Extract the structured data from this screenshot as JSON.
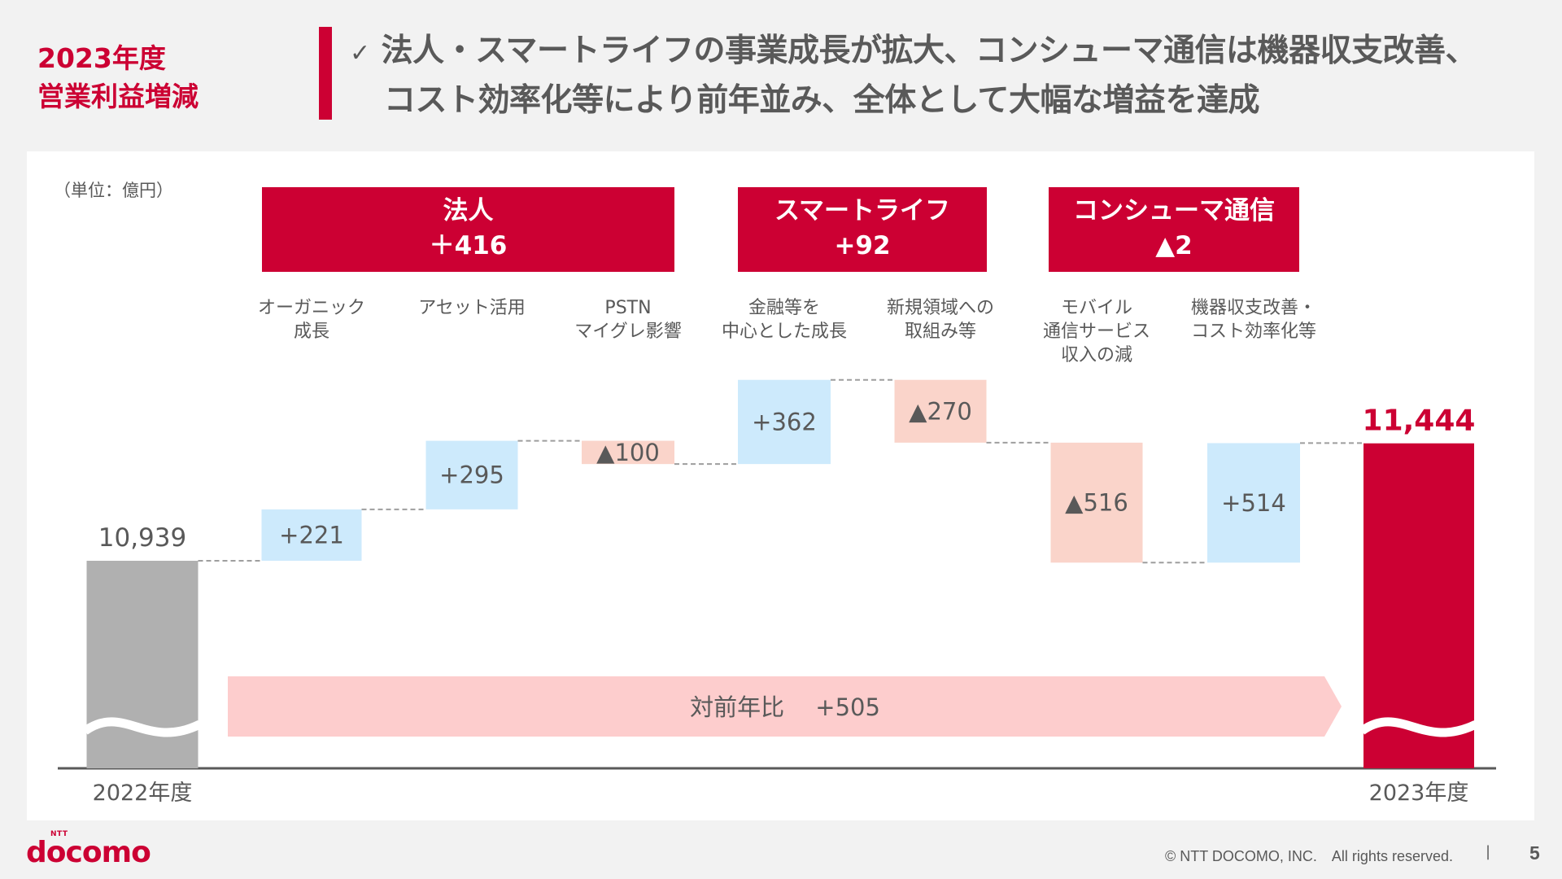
{
  "slide": {
    "heading_line1": "2023年度",
    "heading_line2": "営業利益増減",
    "headline_check": "✓",
    "headline_line1": "法人・スマートライフの事業成長が拡大、コンシューマ通信は機器収支改善、",
    "headline_line2": "コスト効率化等により前年並み、全体として大幅な増益を達成",
    "unit": "（単位：億円）",
    "page_number": "5",
    "copyright": "© NTT DOCOMO, INC.　All rights reserved.",
    "copyright_separator": "|",
    "logo_text": "docomo",
    "logo_sub": "NTT"
  },
  "colors": {
    "brand_red": "#cc0033",
    "increase": "#cdeafc",
    "decrease": "#fad4ca",
    "start_bar": "#b0b0b0",
    "arrow": "#fdcdcd",
    "text": "#595959"
  },
  "segments": [
    {
      "name": "法人",
      "value": "＋416"
    },
    {
      "name": "スマートライフ",
      "value": "+92"
    },
    {
      "name": "コンシューマ通信",
      "value": "▲2"
    }
  ],
  "chart_data": {
    "type": "waterfall",
    "title": "2023年度 営業利益増減",
    "unit": "億円",
    "start": {
      "label": "2022年度",
      "value": 10939,
      "display": "10,939"
    },
    "end": {
      "label": "2023年度",
      "value": 11444,
      "display": "11,444"
    },
    "steps": [
      {
        "segment": "法人",
        "label": "オーガニック\n成長",
        "value": 221,
        "display": "+221"
      },
      {
        "segment": "法人",
        "label": "アセット活用",
        "value": 295,
        "display": "+295"
      },
      {
        "segment": "法人",
        "label": "PSTN\nマイグレ影響",
        "value": -100,
        "display": "▲100"
      },
      {
        "segment": "スマートライフ",
        "label": "金融等を\n中心とした成長",
        "value": 362,
        "display": "+362"
      },
      {
        "segment": "スマートライフ",
        "label": "新規領域への\n取組み等",
        "value": -270,
        "display": "▲270"
      },
      {
        "segment": "コンシューマ通信",
        "label": "モバイル\n通信サービス\n収入の減",
        "value": -516,
        "display": "▲516"
      },
      {
        "segment": "コンシューマ通信",
        "label": "機器収支改善・\nコスト効率化等",
        "value": 514,
        "display": "+514"
      }
    ],
    "yoy": {
      "label": "対前年比",
      "value": 505,
      "display": "+505"
    },
    "axis_break": true,
    "grid": false,
    "legend": "none"
  }
}
